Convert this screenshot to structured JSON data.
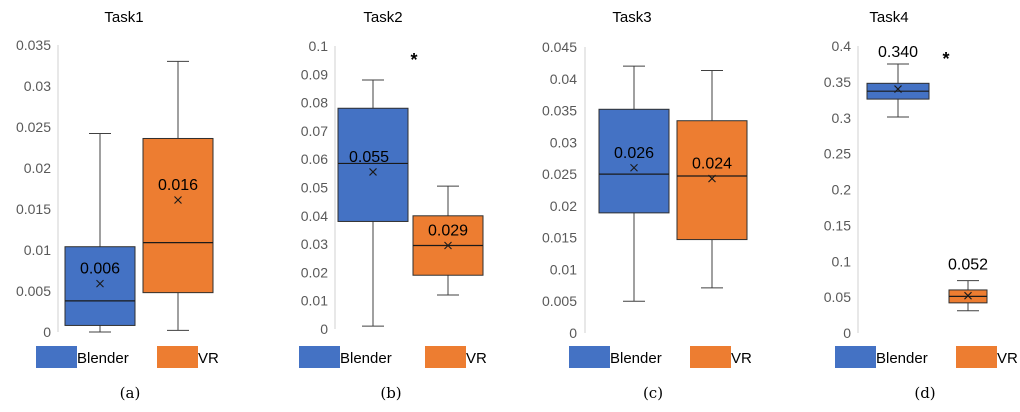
{
  "chart_data": [
    {
      "type": "box",
      "title": "Task1",
      "caption": "(a)",
      "ylim": [
        0,
        0.035
      ],
      "ticks": [
        "0",
        "0.005",
        "0.01",
        "0.015",
        "0.02",
        "0.025",
        "0.03",
        "0.035"
      ],
      "legend_position": "bottom",
      "series": [
        {
          "name": "Blender",
          "color": "#4472C4",
          "min": 0.0,
          "q1": 0.0008,
          "median": 0.0038,
          "q3": 0.0104,
          "max": 0.0242,
          "mean": 0.0059,
          "mean_label": "0.006"
        },
        {
          "name": "VR",
          "color": "#ED7D31",
          "min": 0.0002,
          "q1": 0.0048,
          "median": 0.0109,
          "q3": 0.0236,
          "max": 0.033,
          "mean": 0.0161,
          "mean_label": "0.016"
        }
      ],
      "significance": ""
    },
    {
      "type": "box",
      "title": "Task2",
      "caption": "(b)",
      "ylim": [
        0,
        0.1
      ],
      "ticks": [
        "0",
        "0.01",
        "0.02",
        "0.03",
        "0.04",
        "0.05",
        "0.06",
        "0.07",
        "0.08",
        "0.09",
        "0.1"
      ],
      "legend_position": "bottom",
      "series": [
        {
          "name": "Blender",
          "color": "#4472C4",
          "min": 0.001,
          "q1": 0.038,
          "median": 0.0585,
          "q3": 0.078,
          "max": 0.088,
          "mean": 0.0555,
          "mean_label": "0.055"
        },
        {
          "name": "VR",
          "color": "#ED7D31",
          "min": 0.012,
          "q1": 0.019,
          "median": 0.0295,
          "q3": 0.04,
          "max": 0.0505,
          "mean": 0.0295,
          "mean_label": "0.029"
        }
      ],
      "significance": "*"
    },
    {
      "type": "box",
      "title": "Task3",
      "caption": "(c)",
      "ylim": [
        0,
        0.045
      ],
      "ticks": [
        "0",
        "0.005",
        "0.01",
        "0.015",
        "0.02",
        "0.025",
        "0.03",
        "0.035",
        "0.04",
        "0.045"
      ],
      "legend_position": "bottom",
      "series": [
        {
          "name": "Blender",
          "color": "#4472C4",
          "min": 0.005,
          "q1": 0.0189,
          "median": 0.025,
          "q3": 0.0352,
          "max": 0.042,
          "mean": 0.026,
          "mean_label": "0.026"
        },
        {
          "name": "VR",
          "color": "#ED7D31",
          "min": 0.0071,
          "q1": 0.0147,
          "median": 0.0247,
          "q3": 0.0334,
          "max": 0.0413,
          "mean": 0.0243,
          "mean_label": "0.024"
        }
      ],
      "significance": ""
    },
    {
      "type": "box",
      "title": "Task4",
      "caption": "(d)",
      "ylim": [
        0,
        0.4
      ],
      "ticks": [
        "0",
        "0.05",
        "0.1",
        "0.15",
        "0.2",
        "0.25",
        "0.3",
        "0.35",
        "0.4"
      ],
      "legend_position": "bottom",
      "series": [
        {
          "name": "Blender",
          "color": "#4472C4",
          "min": 0.301,
          "q1": 0.326,
          "median": 0.337,
          "q3": 0.348,
          "max": 0.375,
          "mean": 0.34,
          "mean_label": "0.340"
        },
        {
          "name": "VR",
          "color": "#ED7D31",
          "min": 0.031,
          "q1": 0.042,
          "median": 0.051,
          "q3": 0.06,
          "max": 0.073,
          "mean": 0.052,
          "mean_label": "0.052"
        }
      ],
      "significance": "*"
    }
  ]
}
